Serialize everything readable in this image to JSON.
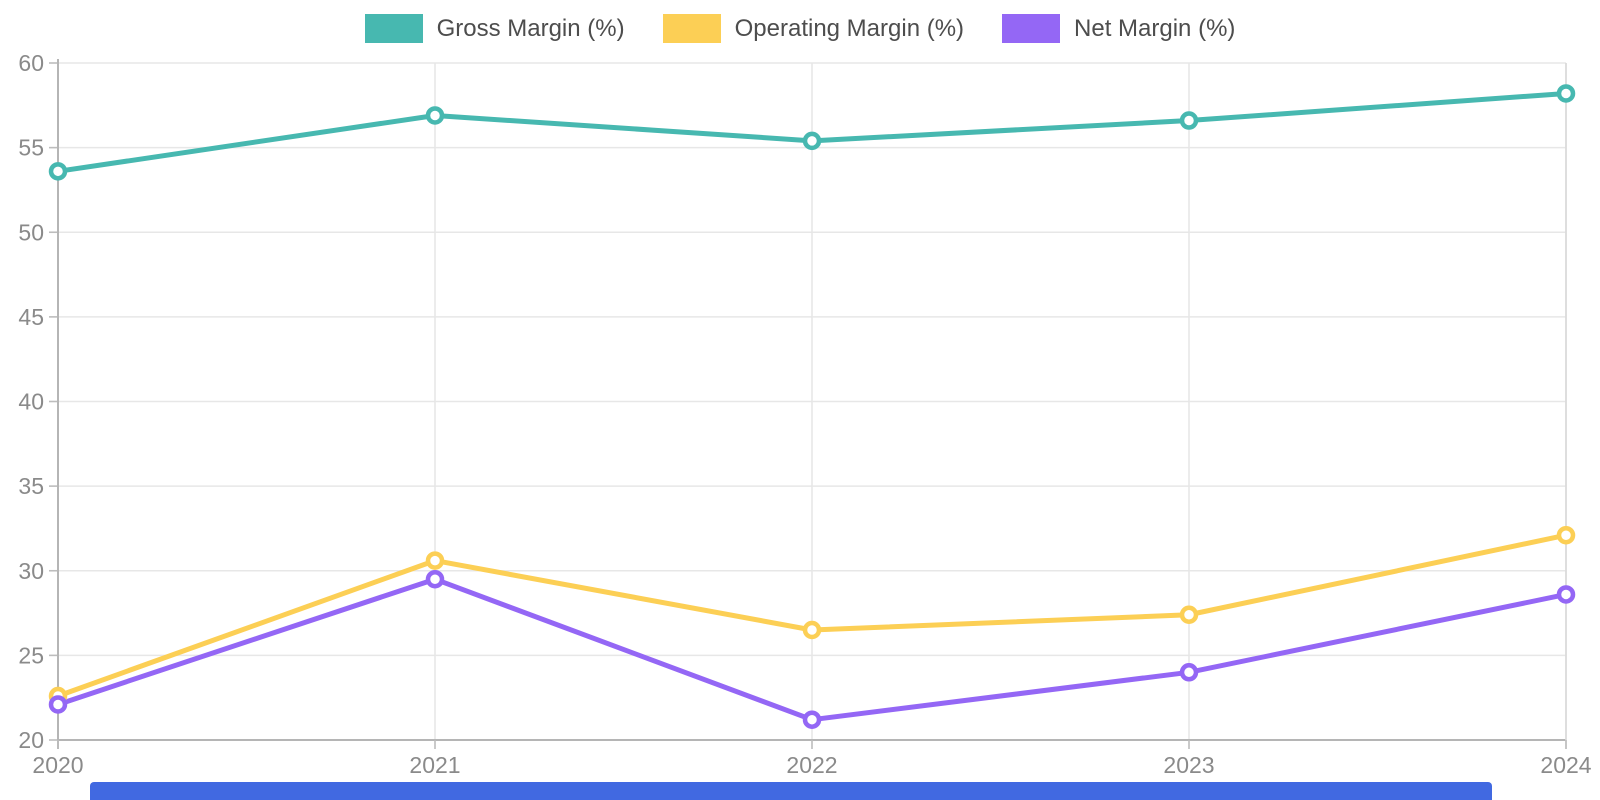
{
  "chart_data": {
    "type": "line",
    "title": "",
    "xlabel": "",
    "ylabel": "",
    "categories": [
      "2020",
      "2021",
      "2022",
      "2023",
      "2024"
    ],
    "series": [
      {
        "name": "Gross Margin (%)",
        "color": "#47b8b0",
        "values": [
          53.6,
          56.9,
          55.4,
          56.6,
          58.2
        ]
      },
      {
        "name": "Operating Margin (%)",
        "color": "#fccf55",
        "values": [
          22.6,
          30.6,
          26.5,
          27.4,
          32.1
        ]
      },
      {
        "name": "Net Margin (%)",
        "color": "#9467f5",
        "values": [
          22.1,
          29.5,
          21.2,
          24.0,
          28.6
        ]
      }
    ],
    "ylim": [
      20,
      60
    ],
    "y_ticks": [
      60,
      55,
      50,
      45,
      40,
      35,
      30,
      25,
      20
    ],
    "grid": true,
    "legend_position": "top-center",
    "marker_style": "open-circle"
  },
  "appearance": {
    "background": "#ffffff",
    "grid_color": "#e7e7e7",
    "axis_color": "#b5b5b5",
    "tick_color": "#bdbdbd",
    "tick_label_color": "#8a8a8a",
    "legend_text_color": "#4d4d4d",
    "scrollbar_color": "#4169e1"
  },
  "scrollbar": {
    "visible": true
  }
}
